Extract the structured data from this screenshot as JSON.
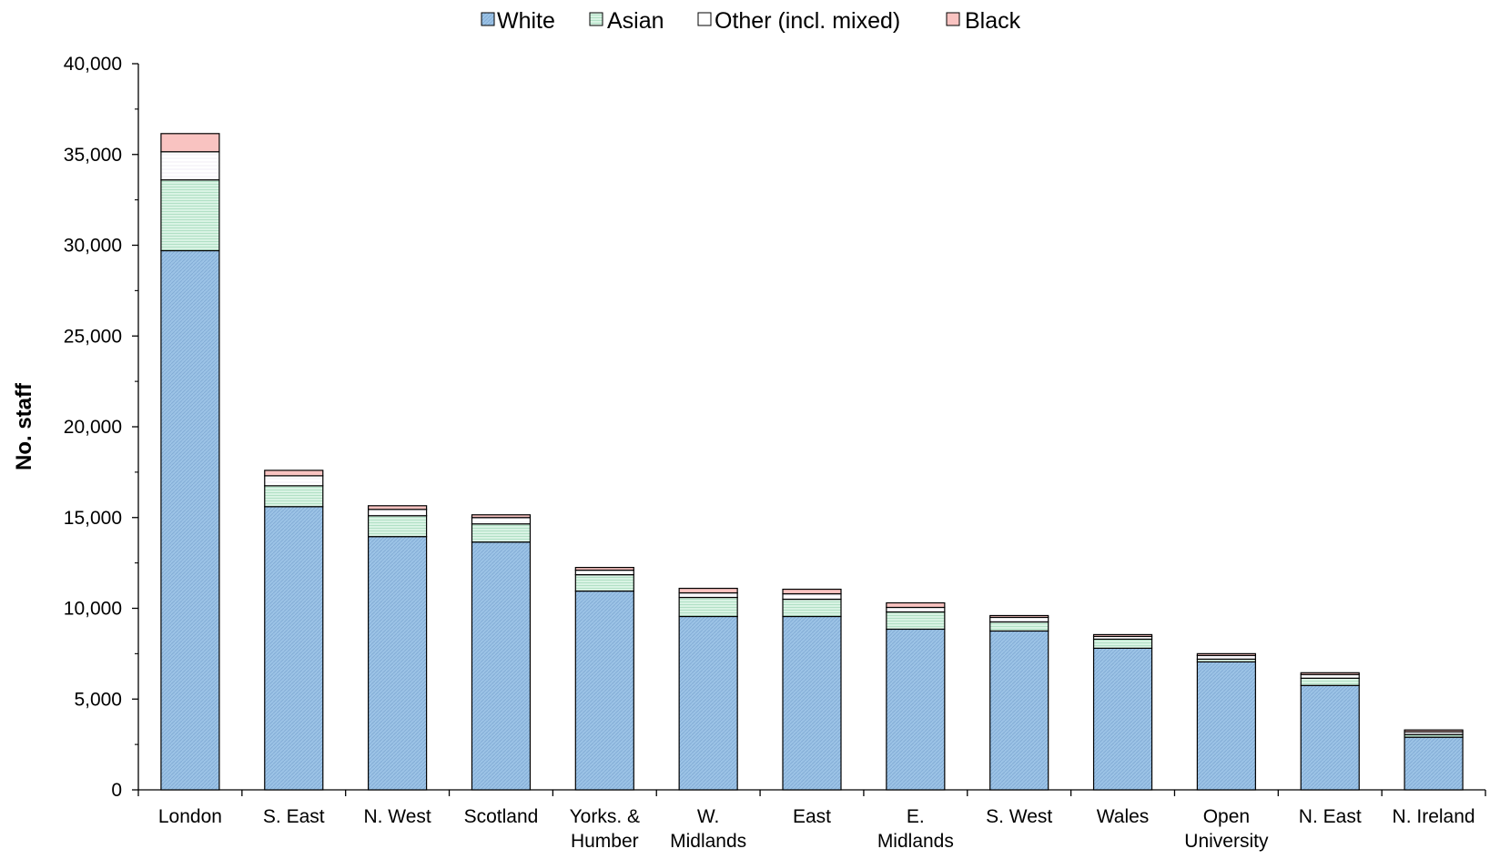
{
  "chart_data": {
    "type": "bar",
    "stacked": true,
    "title": "",
    "xlabel": "",
    "ylabel": "No. staff",
    "ylim": [
      0,
      40000
    ],
    "yticks": [
      0,
      5000,
      10000,
      15000,
      20000,
      25000,
      30000,
      35000,
      40000
    ],
    "ytick_labels": [
      "0",
      "5,000",
      "10,000",
      "15,000",
      "20,000",
      "25,000",
      "30,000",
      "35,000",
      "40,000"
    ],
    "legend_position": "top-center",
    "grid": false,
    "categories": [
      [
        "London"
      ],
      [
        "S. East"
      ],
      [
        "N. West"
      ],
      [
        "Scotland"
      ],
      [
        "Yorks. &",
        "Humber"
      ],
      [
        "W.",
        "Midlands"
      ],
      [
        "East"
      ],
      [
        "E.",
        "Midlands"
      ],
      [
        "S. West"
      ],
      [
        "Wales"
      ],
      [
        "Open",
        "University"
      ],
      [
        "N. East"
      ],
      [
        "N. Ireland"
      ]
    ],
    "series": [
      {
        "name": "White",
        "color": "#9cc3e6",
        "values": [
          29700,
          15600,
          13950,
          13650,
          10950,
          9550,
          9550,
          8850,
          8750,
          7800,
          7050,
          5750,
          2900
        ]
      },
      {
        "name": "Asian",
        "color": "#cfeedd",
        "values": [
          3900,
          1150,
          1150,
          1000,
          900,
          1050,
          950,
          950,
          500,
          500,
          150,
          400,
          150
        ]
      },
      {
        "name": "Other (incl. mixed)",
        "color": "#ffffff",
        "values": [
          1550,
          550,
          350,
          350,
          250,
          250,
          300,
          250,
          250,
          150,
          200,
          200,
          150
        ]
      },
      {
        "name": "Black",
        "color": "#f9c3c1",
        "values": [
          1000,
          300,
          200,
          150,
          150,
          250,
          250,
          250,
          100,
          100,
          100,
          100,
          100
        ]
      }
    ]
  }
}
